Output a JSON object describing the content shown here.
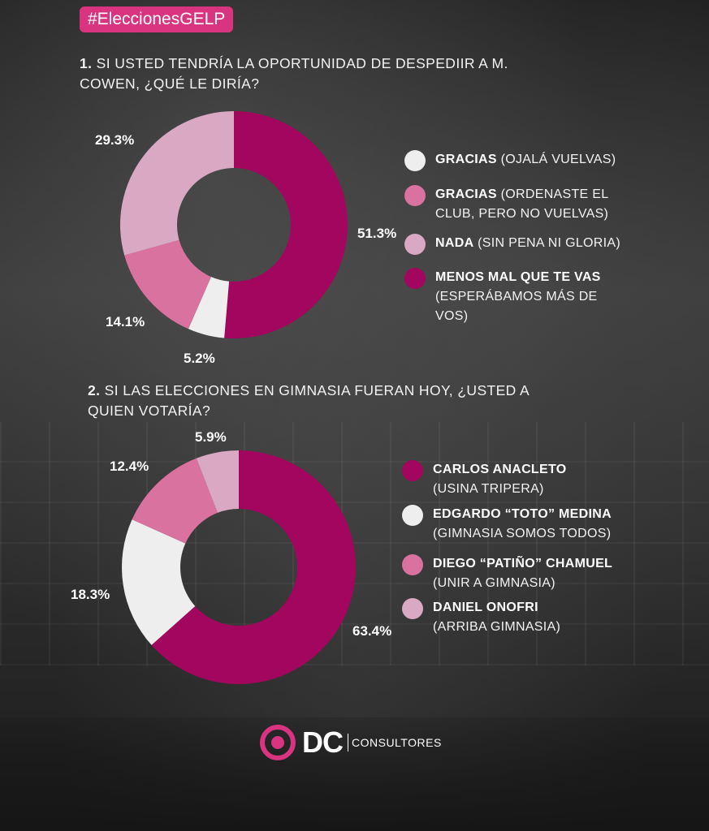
{
  "hashtag": "#EleccionesGELP",
  "colors": {
    "magenta": "#a2065e",
    "pink": "#d9729f",
    "light_pink": "#d9a9c3",
    "white": "#eeeeee",
    "accent": "#d9347f"
  },
  "chart_data": [
    {
      "type": "pie",
      "title_number": "1.",
      "title": "SI USTED TENDRÍA LA OPORTUNIDAD DE DESPEDIIR A M. COWEN, ¿QUÉ LE DIRÍA?",
      "categories": [
        "MENOS MAL QUE TE VAS (ESPERÁBAMOS MÁS DE VOS)",
        "GRACIAS (OJALÁ VUELVAS)",
        "GRACIAS (ORDENASTE EL CLUB, PERO NO VUELVAS)",
        "NADA (SIN PENA NI GLORIA)"
      ],
      "values": [
        51.3,
        5.2,
        14.1,
        29.3
      ],
      "labels": [
        "51.3%",
        "5.2%",
        "14.1%",
        "29.3%"
      ],
      "slice_colors": [
        "#a2065e",
        "#eeeeee",
        "#d9729f",
        "#d9a9c3"
      ],
      "legend": [
        {
          "bold": "GRACIAS",
          "rest": " (OJALÁ VUELVAS)",
          "color": "#eeeeee"
        },
        {
          "bold": "GRACIAS",
          "rest": " (ORDENASTE EL CLUB, PERO NO VUELVAS)",
          "color": "#d9729f"
        },
        {
          "bold": "NADA",
          "rest": " (SIN PENA NI GLORIA)",
          "color": "#d9a9c3"
        },
        {
          "bold": "MENOS MAL QUE TE VAS",
          "rest": "(ESPERÁBAMOS MÁS DE VOS)",
          "color": "#a2065e"
        }
      ],
      "legend_placement": "right"
    },
    {
      "type": "pie",
      "title_number": "2.",
      "title": "SI LAS ELECCIONES EN GIMNASIA FUERAN HOY, ¿USTED A QUIEN VOTARÍA?",
      "categories": [
        "CARLOS ANACLETO",
        "EDGARDO “TOTO” MEDINA",
        "DIEGO “PATIÑO” CHAMUEL",
        "DANIEL ONOFRI"
      ],
      "values": [
        63.4,
        18.3,
        12.4,
        5.9
      ],
      "labels": [
        "63.4%",
        "18.3%",
        "12.4%",
        "5.9%"
      ],
      "slice_colors": [
        "#a2065e",
        "#eeeeee",
        "#d9729f",
        "#d9a9c3"
      ],
      "legend": [
        {
          "bold": "CARLOS ANACLETO",
          "rest": " (USINA TRIPERA)",
          "color": "#a2065e"
        },
        {
          "bold": "EDGARDO “TOTO” MEDINA",
          "rest": "(GIMNASIA SOMOS TODOS)",
          "color": "#eeeeee"
        },
        {
          "bold": "DIEGO “PATIÑO” CHAMUEL",
          "rest": "(UNIR A GIMNASIA)",
          "color": "#d9729f"
        },
        {
          "bold": "DANIEL ONOFRI",
          "rest": "(ARRIBA GIMNASIA)",
          "color": "#d9a9c3"
        }
      ],
      "legend_placement": "right"
    }
  ],
  "logo": {
    "mark": "DC",
    "name": "CONSULTORES"
  }
}
